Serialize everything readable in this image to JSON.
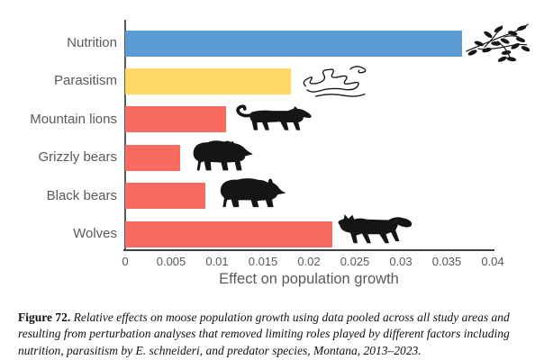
{
  "figure": {
    "caption_label": "Figure 72.",
    "caption_text": "Relative effects on moose population growth using data pooled across all study areas and resulting from perturbation analyses that removed limiting roles played by different factors including nutrition, parasitism by E. schneideri, and predator species, Montana, 2013–2023."
  },
  "colors": {
    "bar_blue": "#5B9BD5",
    "bar_yellow": "#FFD966",
    "bar_red": "#F96A61",
    "axis_text": "#595959",
    "axis_line": "#595959",
    "baseline": "#3F3F3F",
    "icon_black": "#151515"
  },
  "chart_data": {
    "type": "bar",
    "orientation": "horizontal",
    "title": "",
    "xlabel": "Effect on population growth",
    "ylabel": "",
    "xlim": [
      0,
      0.04
    ],
    "grid": false,
    "legend": false,
    "x_ticks": [
      0,
      0.005,
      0.01,
      0.015,
      0.02,
      0.025,
      0.03,
      0.035,
      0.04
    ],
    "x_tick_labels": [
      "0",
      "0.005",
      "0.01",
      "0.015",
      "0.02",
      "0.025",
      "0.03",
      "0.035",
      "0.04"
    ],
    "categories": [
      "Nutrition",
      "Parasitism",
      "Mountain lions",
      "Grizzly bears",
      "Black bears",
      "Wolves"
    ],
    "values": [
      0.0367,
      0.018,
      0.011,
      0.006,
      0.0087,
      0.0225
    ],
    "bar_colors": [
      "#5B9BD5",
      "#FFD966",
      "#F96A61",
      "#F96A61",
      "#F96A61",
      "#F96A61"
    ],
    "icons": [
      "branch-leaves-icon",
      "worms-icon",
      "mountain-lion-icon",
      "grizzly-bear-icon",
      "black-bear-icon",
      "wolf-icon"
    ]
  }
}
